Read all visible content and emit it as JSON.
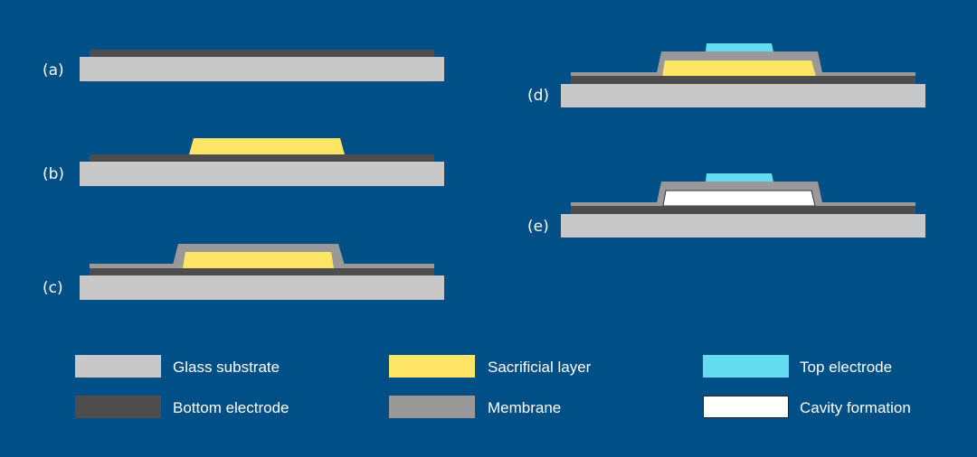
{
  "colors": {
    "background": "#004f87",
    "glass": "#c8c8c8",
    "bottom_electrode": "#4d4d4d",
    "membrane": "#999999",
    "sacrificial": "#ffe566",
    "top_electrode": "#66dcf0",
    "cavity": "#ffffff"
  },
  "steps": [
    {
      "label": "(a)"
    },
    {
      "label": "(b)"
    },
    {
      "label": "(c)"
    },
    {
      "label": "(d)"
    },
    {
      "label": "(e)"
    }
  ],
  "legend": [
    {
      "label": "Glass substrate",
      "color": "#c8c8c8"
    },
    {
      "label": "Sacrificial layer",
      "color": "#ffe566"
    },
    {
      "label": "Top electrode",
      "color": "#66dcf0"
    },
    {
      "label": "Bottom electrode",
      "color": "#4d4d4d"
    },
    {
      "label": "Membrane",
      "color": "#999999"
    },
    {
      "label": "Cavity formation",
      "color": "#ffffff"
    }
  ]
}
